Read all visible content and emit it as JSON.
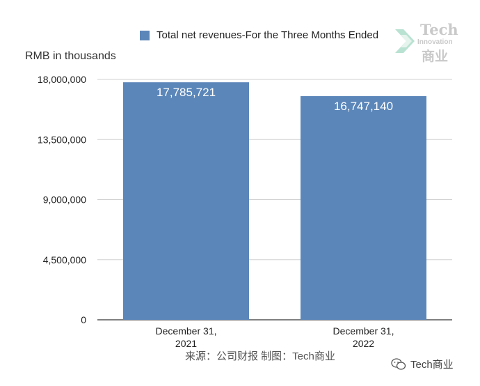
{
  "chart_data": {
    "type": "bar",
    "categories": [
      "December 31, 2021",
      "December 31, 2022"
    ],
    "category_lines": [
      [
        "December 31,",
        "2021"
      ],
      [
        "December 31,",
        "2022"
      ]
    ],
    "series": [
      {
        "name": "Total net revenues-For the Three Months Ended",
        "values": [
          17785721,
          16747140
        ]
      }
    ],
    "data_labels": [
      "17,785,721",
      "16,747,140"
    ],
    "ylabel": "RMB in thousands",
    "ylim": [
      0,
      18000000
    ],
    "yticks": [
      0,
      4500000,
      9000000,
      13500000,
      18000000
    ],
    "ytick_labels": [
      "0",
      "4,500,000",
      "9,000,000",
      "13,500,000",
      "18,000,000"
    ],
    "grid": true,
    "legend_position": "top",
    "bar_color": "#5b86b9"
  },
  "source_text": "来源：公司财报 制图：Tech商业",
  "watermark": {
    "logo_line1": "Tech",
    "logo_line2": "Innovation",
    "logo_line3": "商业",
    "account_name": "Tech商业",
    "account_icon": "wechat-icon"
  }
}
